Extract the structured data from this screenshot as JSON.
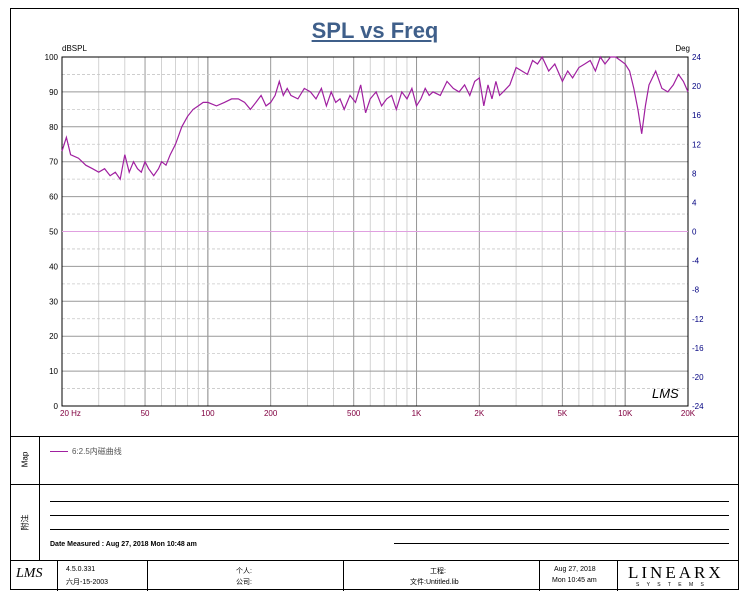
{
  "chart_data": {
    "type": "line",
    "title": "SPL vs Freq",
    "ylabel_left": "dBSPL",
    "ylabel_right": "Deg",
    "xscale": "log",
    "xlim": [
      20,
      20000
    ],
    "ylim": [
      0,
      100
    ],
    "ylim_right": [
      -24,
      24
    ],
    "x_ticks": [
      20,
      50,
      100,
      200,
      500,
      1000,
      2000,
      5000,
      10000,
      20000
    ],
    "x_tick_labels": [
      "20  Hz",
      "50",
      "100",
      "200",
      "500",
      "1K",
      "2K",
      "5K",
      "10K",
      "20K"
    ],
    "y_ticks": [
      0,
      10,
      20,
      30,
      40,
      50,
      60,
      70,
      80,
      90,
      100
    ],
    "y_ticks_right": [
      24,
      20,
      16,
      12,
      8,
      4,
      0,
      -4,
      -8,
      -12,
      -16,
      -20,
      -24
    ],
    "grid": true,
    "series": [
      {
        "name": "6:2.5内磁曲线",
        "color": "#a020a0",
        "x": [
          20,
          21,
          22,
          24,
          26,
          28,
          30,
          32,
          34,
          36,
          38,
          40,
          42,
          44,
          46,
          48,
          50,
          52,
          55,
          58,
          60,
          63,
          66,
          70,
          75,
          80,
          85,
          90,
          95,
          100,
          110,
          120,
          130,
          140,
          150,
          160,
          170,
          180,
          190,
          200,
          210,
          220,
          230,
          240,
          250,
          270,
          290,
          310,
          330,
          350,
          370,
          390,
          410,
          430,
          450,
          480,
          510,
          540,
          570,
          600,
          640,
          680,
          720,
          760,
          800,
          850,
          900,
          950,
          1000,
          1050,
          1100,
          1150,
          1200,
          1300,
          1400,
          1500,
          1600,
          1700,
          1800,
          1900,
          2000,
          2100,
          2200,
          2300,
          2400,
          2500,
          2600,
          2800,
          3000,
          3200,
          3400,
          3600,
          3800,
          4000,
          4300,
          4600,
          5000,
          5300,
          5600,
          6000,
          6400,
          6800,
          7200,
          7600,
          8000,
          8500,
          9000,
          9500,
          10000,
          10500,
          11000,
          11500,
          12000,
          12500,
          13000,
          14000,
          15000,
          16000,
          17000,
          18000,
          19000,
          20000
        ],
        "values": [
          73,
          77,
          72,
          71,
          69,
          68,
          67,
          68,
          66,
          67,
          65,
          72,
          67,
          70,
          68,
          67,
          70,
          68,
          66,
          68,
          70,
          69,
          72,
          75,
          80,
          83,
          85,
          86,
          87,
          87,
          86,
          87,
          88,
          88,
          87,
          85,
          87,
          89,
          86,
          87,
          89,
          93,
          89,
          91,
          89,
          88,
          91,
          90,
          88,
          91,
          86,
          90,
          87,
          88,
          85,
          89,
          87,
          92,
          84,
          88,
          90,
          86,
          88,
          89,
          85,
          90,
          88,
          91,
          86,
          88,
          91,
          89,
          90,
          89,
          93,
          91,
          90,
          92,
          89,
          93,
          94,
          86,
          92,
          88,
          93,
          89,
          90,
          92,
          97,
          96,
          95,
          99,
          98,
          100,
          96,
          98,
          93,
          96,
          94,
          97,
          98,
          99,
          96,
          100,
          98,
          100,
          100,
          99,
          98,
          96,
          91,
          85,
          78,
          86,
          92,
          96,
          91,
          90,
          92,
          95,
          93,
          90
        ]
      }
    ],
    "reference_line": {
      "y": 50,
      "color": "#e0a0e0"
    },
    "watermark": "LMS"
  },
  "legend": {
    "side_label": "Map",
    "entry": "6:2.5内磁曲线"
  },
  "notes": {
    "side_label": "附注",
    "date_measured": "Date Measured : Aug 27, 2018  Mon  10:48 am"
  },
  "footer": {
    "logo": "LMS",
    "version": "4.5.0.331",
    "version_date": "六月-15-2003",
    "person_label": "个人:",
    "company_label": "公司:",
    "project_label": "工程:",
    "file_label": "文件:",
    "file_name": "Untitled.lib",
    "date": "Aug 27, 2018",
    "time": "Mon 10:45 am",
    "brand": "LINEARX",
    "brand_sub": "S Y S T E M S"
  }
}
